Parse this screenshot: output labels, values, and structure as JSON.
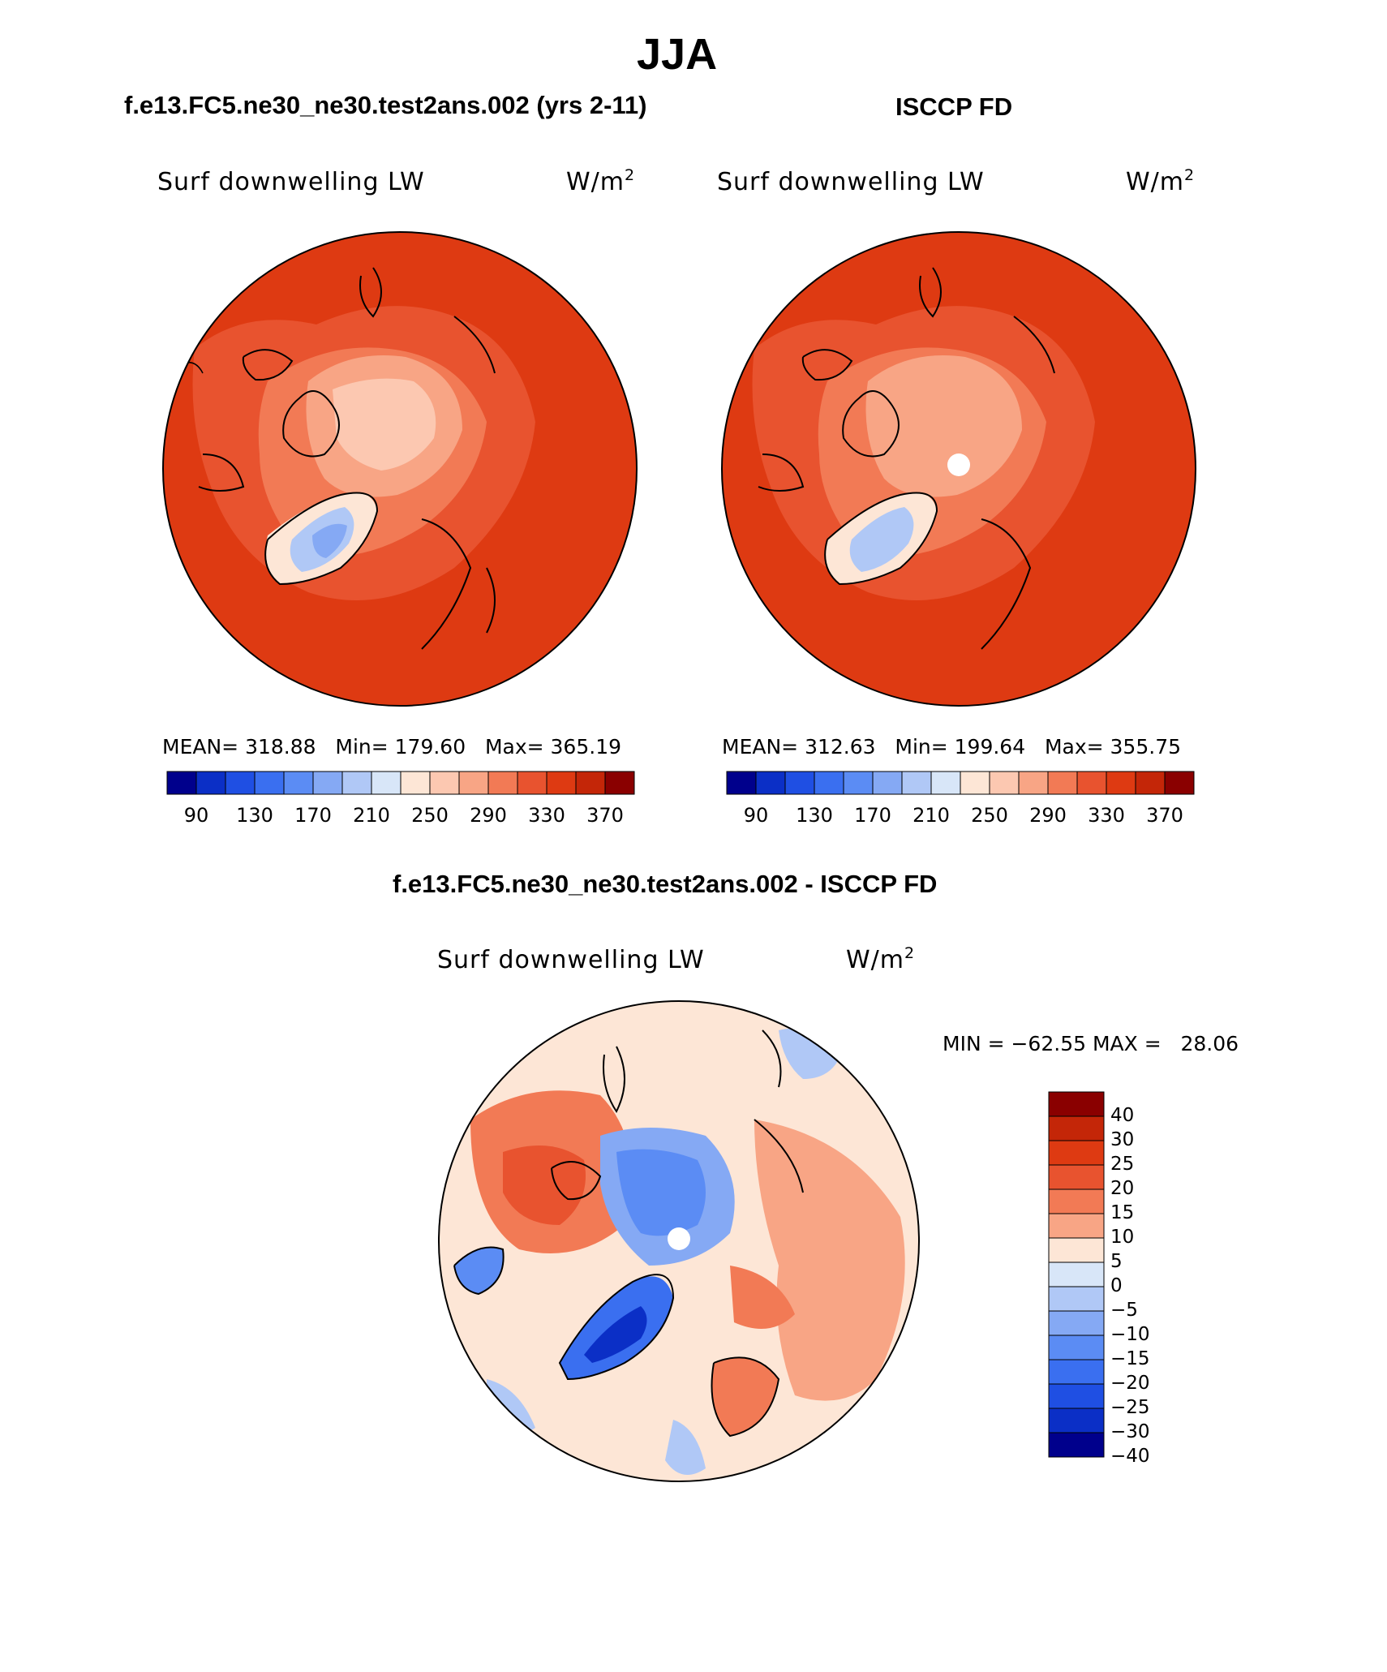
{
  "figure": {
    "season": "JJA",
    "left_header": "f.e13.FC5.ne30_ne30.test2ans.002 (yrs 2-11)",
    "right_header": "ISCCP FD",
    "diff_header": "f.e13.FC5.ne30_ne30.test2ans.002 - ISCCP FD"
  },
  "panels": [
    {
      "variable": "Surf downwelling LW",
      "units_base": "W/m",
      "units_exp": "2",
      "stats": "MEAN= 318.88   Min= 179.60   Max= 365.19",
      "colorbar_labels": [
        "90",
        "130",
        "170",
        "210",
        "250",
        "290",
        "330",
        "370"
      ]
    },
    {
      "variable": "Surf downwelling LW",
      "units_base": "W/m",
      "units_exp": "2",
      "stats": "MEAN= 312.63   Min= 199.64   Max= 355.75",
      "colorbar_labels": [
        "90",
        "130",
        "170",
        "210",
        "250",
        "290",
        "330",
        "370"
      ]
    },
    {
      "variable": "Surf downwelling LW",
      "units_base": "W/m",
      "units_exp": "2",
      "stats": "MIN = −62.55 MAX =   28.06",
      "colorbar_labels": [
        "40",
        "30",
        "25",
        "20",
        "15",
        "10",
        "5",
        "0",
        "−5",
        "−10",
        "−15",
        "−20",
        "−25",
        "−30",
        "−40"
      ]
    }
  ],
  "colors": {
    "abs_scale": [
      "#00008c",
      "#0b2fc6",
      "#1f4fe3",
      "#3a6ff0",
      "#5b8cf4",
      "#85a9f4",
      "#b0c8f6",
      "#d8e6f8",
      "#fde6d6",
      "#fcc8b1",
      "#f8a585",
      "#f27a55",
      "#e8532f",
      "#de3a12",
      "#c42608",
      "#8a0000"
    ],
    "diff_scale": [
      "#8a0000",
      "#c42608",
      "#de3a12",
      "#e8532f",
      "#f27a55",
      "#f8a585",
      "#fde6d6",
      "#d8e6f8",
      "#b0c8f6",
      "#85a9f4",
      "#5b8cf4",
      "#3a6ff0",
      "#1f4fe3",
      "#0b2fc6",
      "#00008c"
    ]
  }
}
